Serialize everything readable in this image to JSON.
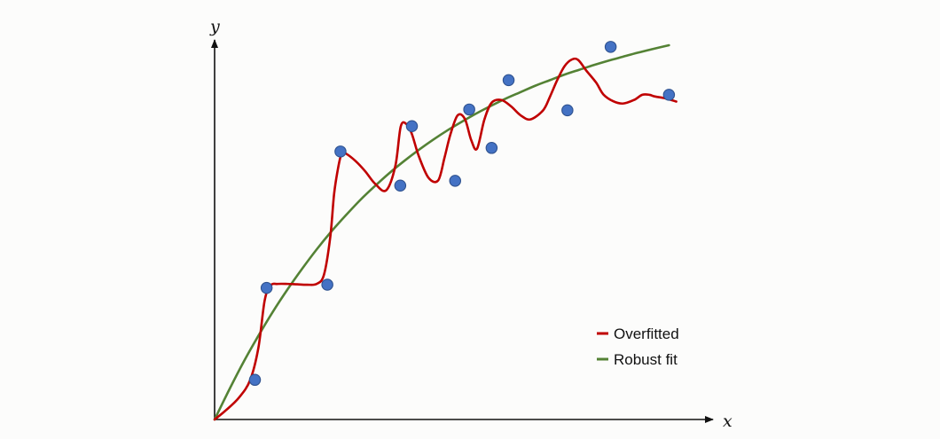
{
  "chart_data": {
    "type": "scatter",
    "title": "",
    "xlabel": "x",
    "ylabel": "y",
    "xlim": [
      0,
      100
    ],
    "ylim": [
      0,
      100
    ],
    "grid": false,
    "legend_position": "bottom-right",
    "series": [
      {
        "name": "Overfitted",
        "kind": "line",
        "color": "#c00000",
        "x": [
          0,
          2.3,
          5,
          7.3,
          9,
          10.3,
          11.5,
          13,
          15,
          17,
          19,
          21,
          22.5,
          23.8,
          24.6,
          25.5,
          26.2,
          27,
          29,
          31,
          33,
          35.3,
          37.2,
          38.3,
          39.5,
          40.6,
          42,
          44,
          46,
          47.3,
          48.5,
          50,
          51.5,
          52.8,
          54,
          55.5,
          57,
          59,
          61,
          63,
          65,
          67.6,
          69,
          70.5,
          72,
          73.5,
          74.8,
          76.5,
          78.5,
          80,
          82,
          84,
          86.3,
          88,
          89.5,
          90.5,
          92.8,
          95
        ],
        "y": [
          0,
          2.3,
          5.5,
          9.9,
          18,
          30,
          33.8,
          34.2,
          34.2,
          34.1,
          34,
          34.2,
          36.5,
          46,
          57,
          64,
          67.3,
          67.1,
          65.2,
          62.6,
          59.5,
          57.8,
          64,
          73.9,
          74.5,
          72,
          66.5,
          61,
          60.3,
          66,
          71.8,
          76.7,
          75.8,
          70.5,
          68.3,
          75.6,
          79.9,
          80.6,
          79,
          76.7,
          75.7,
          78,
          81.4,
          85.6,
          89.1,
          90.8,
          90.7,
          88,
          85,
          82,
          80.3,
          79.7,
          80.6,
          81.9,
          81.9,
          81.5,
          81,
          80.2
        ]
      },
      {
        "name": "Robust fit",
        "kind": "line",
        "color": "#548235",
        "x": [
          0,
          3,
          6,
          9,
          12,
          15,
          18,
          21,
          24,
          27,
          30,
          33,
          36,
          39,
          42,
          45,
          48,
          51,
          54,
          57,
          60,
          63,
          66,
          69,
          72,
          75,
          78,
          81,
          84,
          87,
          90,
          93.5
        ],
        "y": [
          0,
          7.5,
          14.6,
          21.1,
          27.2,
          32.8,
          38,
          42.9,
          47.4,
          51.5,
          55.4,
          58.9,
          62.2,
          65.2,
          68,
          70.6,
          73,
          75.2,
          77.3,
          79.2,
          81,
          82.6,
          84.2,
          85.6,
          87,
          88.2,
          89.4,
          90.5,
          91.5,
          92.5,
          93.4,
          94.4
        ]
      },
      {
        "name": "",
        "kind": "points",
        "color": "#4472c4",
        "x": [
          8.3,
          10.7,
          23.2,
          25.9,
          38.2,
          40.6,
          49.5,
          52.4,
          57.0,
          60.5,
          72.6,
          81.5,
          93.5
        ],
        "y": [
          10.0,
          33.2,
          34.0,
          67.6,
          59.0,
          74.0,
          60.2,
          78.2,
          68.5,
          85.6,
          78.0,
          94.0,
          81.9
        ]
      }
    ]
  }
}
